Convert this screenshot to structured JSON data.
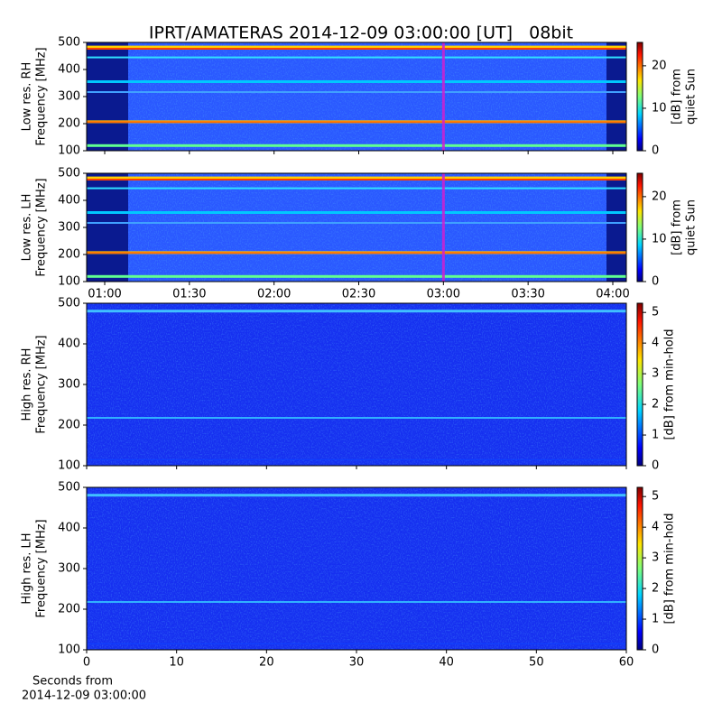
{
  "chart_data": [
    {
      "type": "heatmap",
      "title": "IPRT/AMATERAS 2014-12-09 03:00:00 [UT]   08bit",
      "ylabel": [
        "Low res. RH",
        "Frequency [MHz]"
      ],
      "ylim": [
        100,
        500
      ],
      "yticks": [
        100,
        200,
        300,
        400,
        500
      ],
      "xlim": [
        53.6,
        244.8
      ],
      "xticks": [
        60,
        90,
        120,
        150,
        180,
        210,
        240
      ],
      "show_xtick_labels": false,
      "marker": 180,
      "marker_color": "#d020d0",
      "colorbar": {
        "label": [
          "[dB] from",
          "quiet Sun"
        ],
        "clim": [
          0,
          25.5
        ],
        "ticks": [
          0,
          10,
          20
        ]
      }
    },
    {
      "type": "heatmap",
      "ylabel": [
        "Low res. LH",
        "Frequency [MHz]"
      ],
      "ylim": [
        100,
        500
      ],
      "yticks": [
        100,
        200,
        300,
        400,
        500
      ],
      "xlim": [
        53.6,
        244.8
      ],
      "xticks": [
        {
          "value": 60,
          "label": "01:00"
        },
        {
          "value": 90,
          "label": "01:30"
        },
        {
          "value": 120,
          "label": "02:00"
        },
        {
          "value": 150,
          "label": "02:30"
        },
        {
          "value": 180,
          "label": "03:00"
        },
        {
          "value": 210,
          "label": "03:30"
        },
        {
          "value": 240,
          "label": "04:00"
        }
      ],
      "show_xtick_labels": true,
      "marker": 180,
      "marker_color": "#d020d0",
      "colorbar": {
        "label": [
          "[dB] from",
          "quiet Sun"
        ],
        "clim": [
          0,
          25.5
        ],
        "ticks": [
          0,
          10,
          20
        ]
      }
    },
    {
      "type": "heatmap",
      "ylabel": [
        "High res. RH",
        "Frequency [MHz]"
      ],
      "ylim": [
        100,
        500
      ],
      "yticks": [
        100,
        200,
        300,
        400,
        500
      ],
      "xlim": [
        0,
        60
      ],
      "xticks": [
        0,
        10,
        20,
        30,
        40,
        50,
        60
      ],
      "show_xtick_labels": false,
      "colorbar": {
        "label": [
          "[dB] from min-hold"
        ],
        "clim": [
          0,
          5.3
        ],
        "ticks": [
          0,
          1,
          2,
          3,
          4,
          5
        ]
      }
    },
    {
      "type": "heatmap",
      "ylabel": [
        "High res. LH",
        "Frequency [MHz]"
      ],
      "ylim": [
        100,
        500
      ],
      "yticks": [
        100,
        200,
        300,
        400,
        500
      ],
      "xlim": [
        0,
        60
      ],
      "xticks": [
        0,
        10,
        20,
        30,
        40,
        50,
        60
      ],
      "show_xtick_labels": true,
      "xlabel": [
        "Seconds from",
        "2014-12-09 03:00:00"
      ],
      "colorbar": {
        "label": [
          "[dB] from min-hold"
        ],
        "clim": [
          0,
          5.3
        ],
        "ticks": [
          0,
          1,
          2,
          3,
          4,
          5
        ]
      }
    }
  ]
}
